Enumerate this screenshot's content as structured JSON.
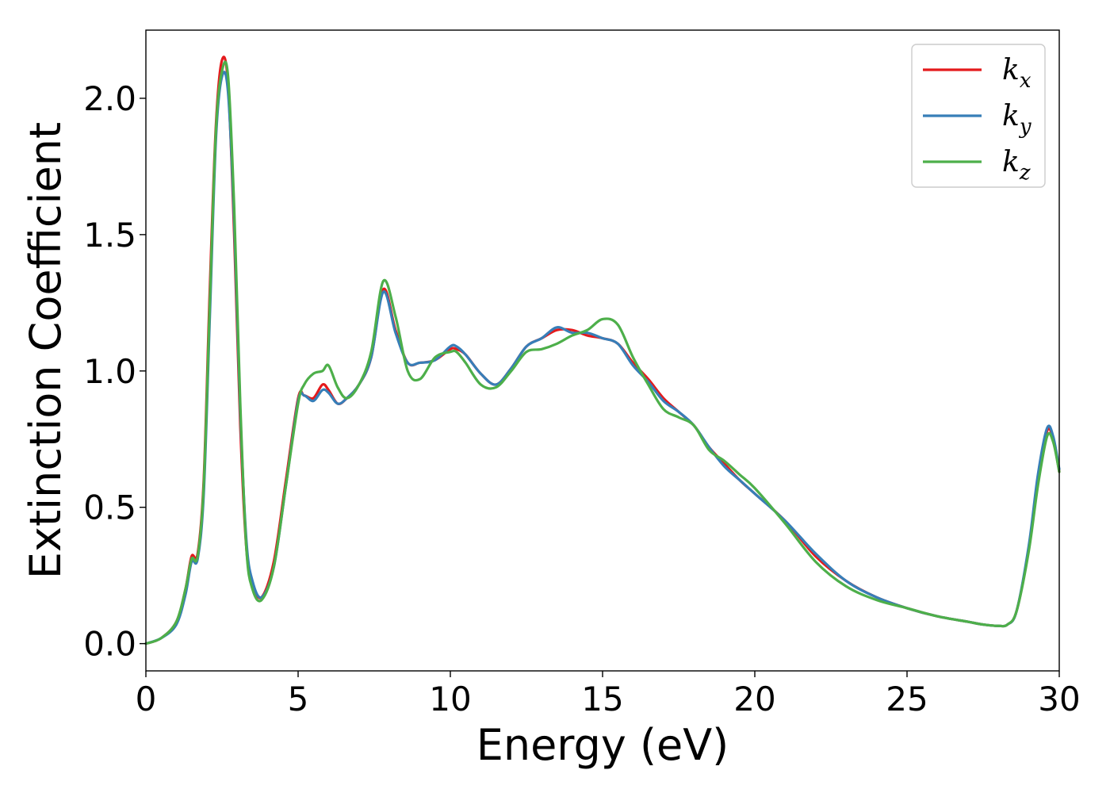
{
  "chart_data": {
    "type": "line",
    "xlabel": "Energy (eV)",
    "ylabel": "Extinction Coefficient",
    "xlim": [
      0,
      30
    ],
    "ylim": [
      -0.1,
      2.25
    ],
    "xticks": [
      "0",
      "5",
      "10",
      "15",
      "20",
      "25",
      "30"
    ],
    "yticks": [
      "0.0",
      "0.5",
      "1.0",
      "1.5",
      "2.0"
    ],
    "grid": false,
    "legend_position": "top-right",
    "series": [
      {
        "name": "k",
        "subscript": "x",
        "color": "#e41a1c",
        "x": [
          0,
          0.5,
          1.0,
          1.3,
          1.5,
          1.7,
          1.9,
          2.1,
          2.3,
          2.5,
          2.7,
          2.9,
          3.1,
          3.3,
          3.5,
          3.8,
          4.2,
          4.6,
          5.0,
          5.2,
          5.5,
          5.8,
          6.0,
          6.3,
          6.6,
          7.0,
          7.4,
          7.8,
          8.2,
          8.6,
          9.0,
          9.5,
          10.0,
          10.2,
          10.5,
          11.0,
          11.5,
          12.0,
          12.5,
          13.0,
          13.5,
          14.0,
          14.5,
          15.0,
          15.5,
          16.0,
          16.5,
          17.0,
          17.5,
          18.0,
          18.5,
          19.0,
          19.5,
          20.0,
          21.0,
          22.0,
          23.0,
          24.0,
          25.0,
          26.0,
          27.0,
          27.5,
          28.0,
          28.3,
          28.6,
          29.0,
          29.3,
          29.6,
          29.8,
          30.0
        ],
        "y": [
          0.0,
          0.02,
          0.08,
          0.2,
          0.32,
          0.33,
          0.6,
          1.3,
          1.9,
          2.14,
          2.05,
          1.5,
          0.8,
          0.35,
          0.22,
          0.17,
          0.3,
          0.6,
          0.9,
          0.91,
          0.9,
          0.95,
          0.93,
          0.88,
          0.9,
          0.95,
          1.05,
          1.3,
          1.15,
          1.03,
          1.03,
          1.04,
          1.08,
          1.08,
          1.06,
          0.99,
          0.95,
          1.01,
          1.09,
          1.12,
          1.15,
          1.15,
          1.13,
          1.12,
          1.1,
          1.03,
          0.97,
          0.9,
          0.85,
          0.8,
          0.72,
          0.66,
          0.6,
          0.55,
          0.45,
          0.32,
          0.23,
          0.17,
          0.13,
          0.1,
          0.08,
          0.07,
          0.065,
          0.07,
          0.12,
          0.35,
          0.6,
          0.78,
          0.75,
          0.63
        ]
      },
      {
        "name": "k",
        "subscript": "y",
        "color": "#377eb8",
        "x": [
          0,
          0.5,
          1.0,
          1.3,
          1.5,
          1.7,
          1.9,
          2.1,
          2.3,
          2.5,
          2.7,
          2.9,
          3.1,
          3.3,
          3.5,
          3.8,
          4.2,
          4.6,
          5.0,
          5.2,
          5.5,
          5.8,
          6.0,
          6.3,
          6.6,
          7.0,
          7.4,
          7.8,
          8.2,
          8.6,
          9.0,
          9.5,
          10.0,
          10.2,
          10.5,
          11.0,
          11.5,
          12.0,
          12.5,
          13.0,
          13.5,
          14.0,
          14.5,
          15.0,
          15.5,
          16.0,
          16.5,
          17.0,
          17.5,
          18.0,
          18.5,
          19.0,
          19.5,
          20.0,
          21.0,
          22.0,
          23.0,
          24.0,
          25.0,
          26.0,
          27.0,
          27.5,
          28.0,
          28.3,
          28.6,
          29.0,
          29.3,
          29.6,
          29.8,
          30.0
        ],
        "y": [
          0.0,
          0.02,
          0.07,
          0.18,
          0.3,
          0.31,
          0.55,
          1.2,
          1.85,
          2.08,
          2.02,
          1.55,
          0.85,
          0.38,
          0.23,
          0.17,
          0.28,
          0.58,
          0.89,
          0.91,
          0.89,
          0.93,
          0.92,
          0.88,
          0.9,
          0.95,
          1.05,
          1.29,
          1.14,
          1.03,
          1.03,
          1.04,
          1.09,
          1.09,
          1.06,
          0.99,
          0.95,
          1.01,
          1.09,
          1.12,
          1.16,
          1.14,
          1.14,
          1.12,
          1.1,
          1.02,
          0.96,
          0.89,
          0.85,
          0.8,
          0.72,
          0.65,
          0.6,
          0.55,
          0.45,
          0.33,
          0.23,
          0.17,
          0.13,
          0.1,
          0.08,
          0.07,
          0.065,
          0.07,
          0.12,
          0.36,
          0.62,
          0.79,
          0.76,
          0.64
        ]
      },
      {
        "name": "k",
        "subscript": "z",
        "color": "#4daf4a",
        "x": [
          0,
          0.5,
          1.0,
          1.3,
          1.5,
          1.7,
          1.9,
          2.1,
          2.3,
          2.5,
          2.7,
          2.9,
          3.1,
          3.3,
          3.5,
          3.8,
          4.2,
          4.6,
          5.0,
          5.2,
          5.5,
          5.8,
          6.0,
          6.3,
          6.6,
          7.0,
          7.4,
          7.8,
          8.2,
          8.6,
          9.0,
          9.5,
          10.0,
          10.2,
          10.5,
          11.0,
          11.5,
          12.0,
          12.5,
          13.0,
          13.5,
          14.0,
          14.5,
          15.0,
          15.5,
          16.0,
          16.5,
          17.0,
          17.5,
          18.0,
          18.5,
          19.0,
          19.5,
          20.0,
          21.0,
          22.0,
          23.0,
          24.0,
          25.0,
          26.0,
          27.0,
          27.5,
          28.0,
          28.3,
          28.6,
          29.0,
          29.3,
          29.6,
          29.8,
          30.0
        ],
        "y": [
          0.0,
          0.02,
          0.08,
          0.2,
          0.31,
          0.32,
          0.58,
          1.25,
          1.88,
          2.1,
          2.08,
          1.6,
          0.88,
          0.35,
          0.2,
          0.16,
          0.28,
          0.58,
          0.88,
          0.95,
          0.99,
          1.0,
          1.02,
          0.94,
          0.9,
          0.95,
          1.07,
          1.33,
          1.2,
          1.0,
          0.97,
          1.05,
          1.07,
          1.07,
          1.03,
          0.95,
          0.94,
          1.0,
          1.07,
          1.08,
          1.1,
          1.13,
          1.15,
          1.19,
          1.17,
          1.05,
          0.95,
          0.86,
          0.83,
          0.8,
          0.71,
          0.67,
          0.62,
          0.57,
          0.44,
          0.3,
          0.21,
          0.16,
          0.13,
          0.1,
          0.08,
          0.07,
          0.065,
          0.07,
          0.12,
          0.34,
          0.58,
          0.76,
          0.74,
          0.63
        ]
      }
    ]
  }
}
